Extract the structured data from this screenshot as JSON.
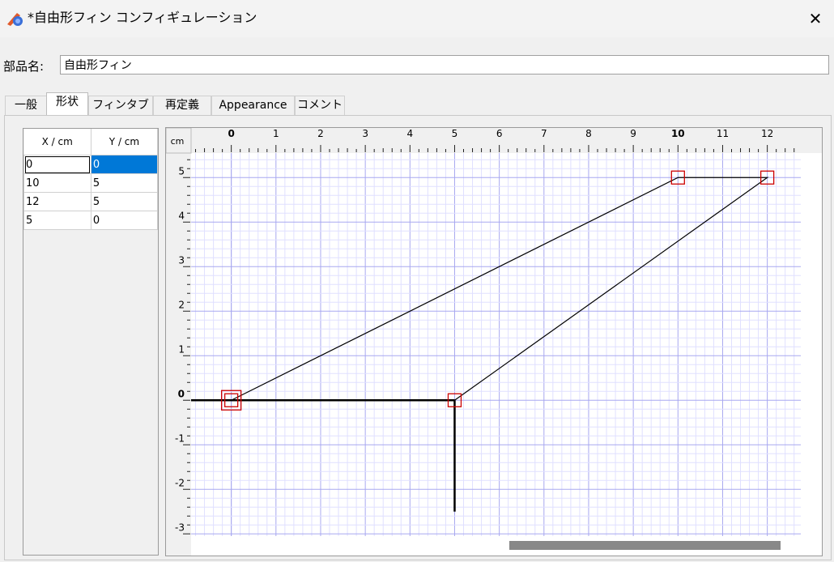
{
  "window": {
    "title": "*自由形フィン コンフィギュレーション",
    "close_glyph": "✕"
  },
  "part_name": {
    "label": "部品名:",
    "value": "自由形フィン"
  },
  "tabs": [
    "一般",
    "形状",
    "フィンタブ",
    "再定義",
    "Appearance",
    "コメント"
  ],
  "active_tab": "形状",
  "points_table": {
    "headers": [
      "X / cm",
      "Y / cm"
    ],
    "rows": [
      [
        "0",
        "0"
      ],
      [
        "10",
        "5"
      ],
      [
        "12",
        "5"
      ],
      [
        "5",
        "0"
      ]
    ]
  },
  "chart_data": {
    "type": "line",
    "units_label": "cm",
    "xlim": [
      -0.9,
      12.75
    ],
    "ylim": [
      -3.05,
      5.55
    ],
    "x_ticks": [
      "0",
      "1",
      "2",
      "3",
      "4",
      "5",
      "6",
      "7",
      "8",
      "9",
      "10",
      "11",
      "12"
    ],
    "y_ticks": [
      "5",
      "4",
      "3",
      "2",
      "1",
      "0",
      "-1",
      "-2",
      "-3"
    ],
    "bold_x_ticks": [
      "0",
      "10"
    ],
    "bold_y_ticks": [
      "0"
    ],
    "fin_points": [
      [
        0,
        0
      ],
      [
        10,
        5
      ],
      [
        12,
        5
      ],
      [
        5,
        0
      ]
    ],
    "body_line": [
      [
        -0.9,
        0
      ],
      [
        5,
        0
      ]
    ],
    "body_end_line": [
      [
        5,
        0
      ],
      [
        5,
        -2.5
      ]
    ],
    "grid": true,
    "colors": {
      "grid_minor": "#e0e0ff",
      "grid_major": "#a8a8f0",
      "handle": "#cc0000",
      "scrollbar": "#888888"
    }
  }
}
